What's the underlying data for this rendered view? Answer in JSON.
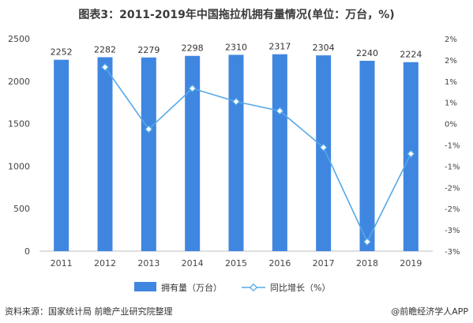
{
  "title": "图表3：2011-2019年中国拖拉机拥有量情况(单位：万台，%)",
  "source": "资料来源：国家统计局 前瞻产业研究院整理",
  "brand": "@前瞻经济学人APP",
  "colors": {
    "bar": "#3f86e0",
    "line": "#56a8e6",
    "axis_text": "#444444",
    "grid": "#e3e3e3"
  },
  "chart_data": {
    "type": "bar",
    "categories": [
      "2011",
      "2012",
      "2013",
      "2014",
      "2015",
      "2016",
      "2017",
      "2018",
      "2019"
    ],
    "series": [
      {
        "name": "拥有量（万台）",
        "type": "bar",
        "axis": "left",
        "values": [
          2252,
          2282,
          2279,
          2298,
          2310,
          2317,
          2304,
          2240,
          2224
        ]
      },
      {
        "name": "同比增长（%）",
        "type": "line",
        "axis": "right",
        "values": [
          null,
          1.33,
          -0.13,
          0.83,
          0.52,
          0.3,
          -0.56,
          -2.78,
          -0.71
        ]
      }
    ],
    "left_axis": {
      "min": 0,
      "max": 2500,
      "ticks": [
        0,
        500,
        1000,
        1500,
        2000,
        2500
      ]
    },
    "right_axis": {
      "min": -3,
      "max": 2,
      "ticks": [
        2,
        1.5,
        1,
        0.5,
        0,
        -0.5,
        -1,
        -1.5,
        -2,
        -2.5,
        -3
      ],
      "tick_labels": [
        "2%",
        "2%",
        "1%",
        "1%",
        "0%",
        "-1%",
        "-1%",
        "-2%",
        "-2%",
        "-3%",
        "-3%"
      ]
    },
    "grid": false,
    "legend": "bottom"
  }
}
